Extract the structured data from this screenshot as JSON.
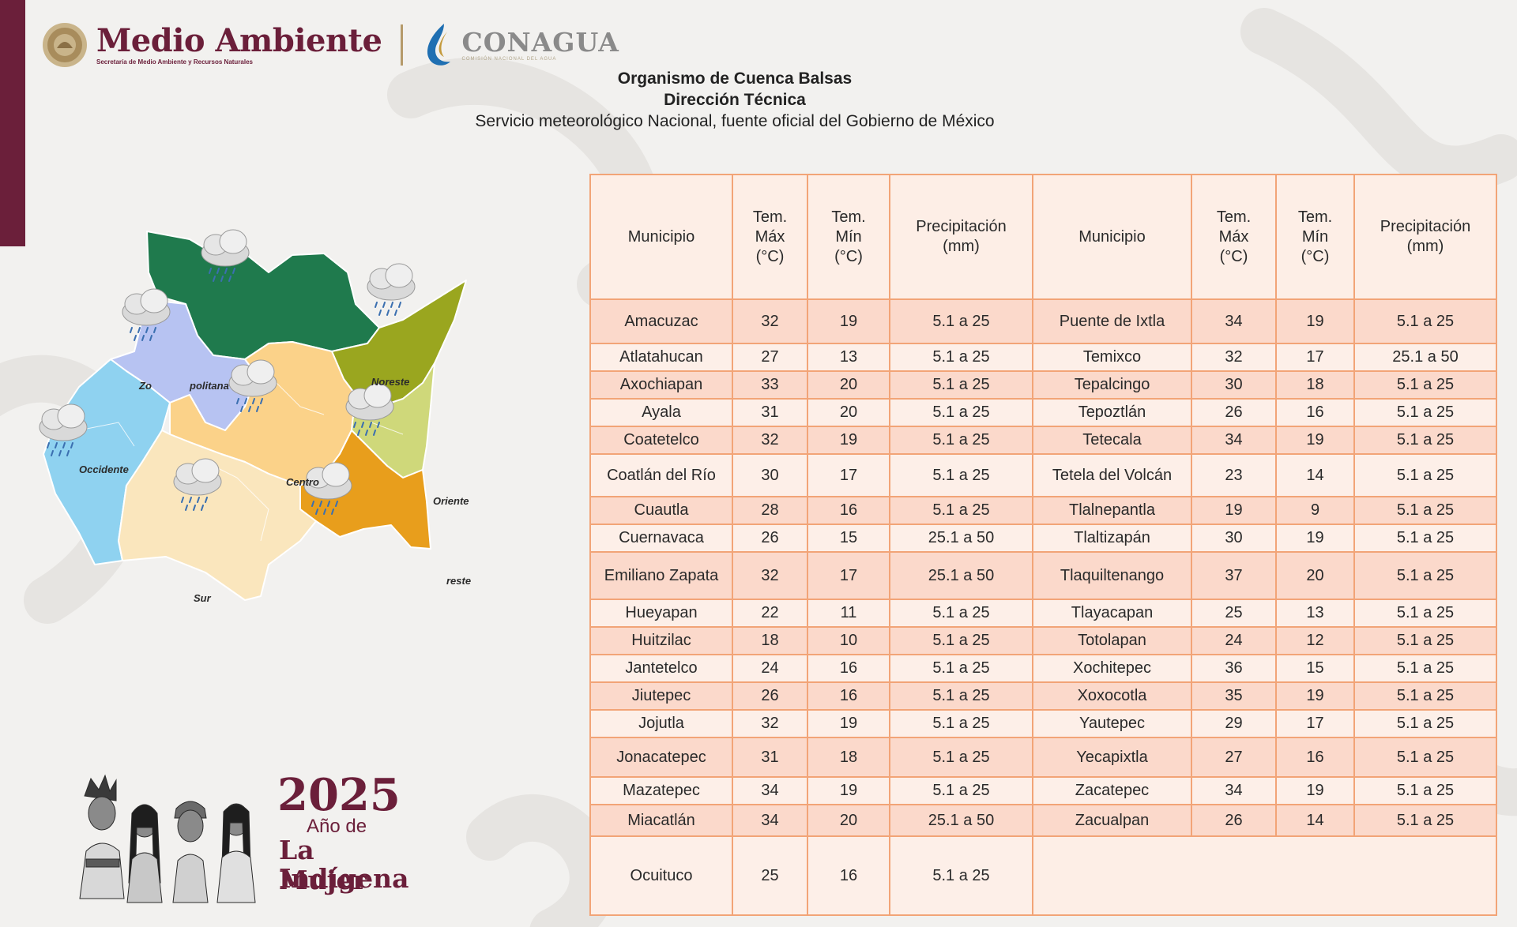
{
  "colors": {
    "brand": "#6b1f3a",
    "table_border": "#f2a477",
    "row_dark": "#fbd9cb",
    "row_light": "#fdefe8"
  },
  "logos": {
    "medio_ambiente": "Medio Ambiente",
    "medio_ambiente_sub": "Secretaría de Medio Ambiente y Recursos Naturales",
    "conagua": "CONAGUA",
    "conagua_sub": "COMISIÓN NACIONAL DEL AGUA"
  },
  "header": {
    "line1": "Organismo de Cuenca Balsas",
    "line2": "Dirección Técnica",
    "line3": "Servicio meteorológico Nacional, fuente oficial del Gobierno de México"
  },
  "map": {
    "region_labels": [
      "Zo",
      "politana",
      "Noreste",
      "Occidente",
      "Centro",
      "Oriente",
      "reste",
      "Sur"
    ],
    "icon": "rain-cloud-icon"
  },
  "badge": {
    "year": "2025",
    "line2": "Año de",
    "line3": "La Mujer",
    "line4": "Indígena"
  },
  "table": {
    "headers": [
      [
        "Municipio"
      ],
      [
        "Tem.",
        "Máx",
        "(°C)"
      ],
      [
        "Tem.",
        "Mín",
        "(°C)"
      ],
      [
        "Precipitación",
        "(mm)"
      ],
      [
        "Municipio"
      ],
      [
        "Tem.",
        "Máx",
        "(°C)"
      ],
      [
        "Tem.",
        "Mín",
        "(°C)"
      ],
      [
        "Precipitación",
        "(mm)"
      ]
    ],
    "rows": [
      [
        "Amacuzac",
        "32",
        "19",
        "5.1 a 25",
        "Puente de Ixtla",
        "34",
        "19",
        "5.1 a 25"
      ],
      [
        "Atlatahucan",
        "27",
        "13",
        "5.1 a 25",
        "Temixco",
        "32",
        "17",
        "25.1 a 50"
      ],
      [
        "Axochiapan",
        "33",
        "20",
        "5.1 a 25",
        "Tepalcingo",
        "30",
        "18",
        "5.1 a 25"
      ],
      [
        "Ayala",
        "31",
        "20",
        "5.1 a 25",
        "Tepoztlán",
        "26",
        "16",
        "5.1 a 25"
      ],
      [
        "Coatetelco",
        "32",
        "19",
        "5.1 a 25",
        "Tetecala",
        "34",
        "19",
        "5.1 a 25"
      ],
      [
        "Coatlán del Río",
        "30",
        "17",
        "5.1 a 25",
        "Tetela del Volcán",
        "23",
        "14",
        "5.1 a 25"
      ],
      [
        "Cuautla",
        "28",
        "16",
        "5.1 a 25",
        "Tlalnepantla",
        "19",
        "9",
        "5.1 a 25"
      ],
      [
        "Cuernavaca",
        "26",
        "15",
        "25.1 a 50",
        "Tlaltizapán",
        "30",
        "19",
        "5.1 a 25"
      ],
      [
        "Emiliano Zapata",
        "32",
        "17",
        "25.1 a 50",
        "Tlaquiltenango",
        "37",
        "20",
        "5.1 a 25"
      ],
      [
        "Hueyapan",
        "22",
        "11",
        "5.1 a 25",
        "Tlayacapan",
        "25",
        "13",
        "5.1 a 25"
      ],
      [
        "Huitzilac",
        "18",
        "10",
        "5.1 a 25",
        "Totolapan",
        "24",
        "12",
        "5.1 a 25"
      ],
      [
        "Jantetelco",
        "24",
        "16",
        "5.1 a 25",
        "Xochitepec",
        "36",
        "15",
        "5.1 a 25"
      ],
      [
        "Jiutepec",
        "26",
        "16",
        "5.1 a 25",
        "Xoxocotla",
        "35",
        "19",
        "5.1 a 25"
      ],
      [
        "Jojutla",
        "32",
        "19",
        "5.1 a 25",
        "Yautepec",
        "29",
        "17",
        "5.1 a 25"
      ],
      [
        "Jonacatepec",
        "31",
        "18",
        "5.1 a 25",
        "Yecapixtla",
        "27",
        "16",
        "5.1 a 25"
      ],
      [
        "Mazatepec",
        "34",
        "19",
        "5.1 a 25",
        "Zacatepec",
        "34",
        "19",
        "5.1 a 25"
      ],
      [
        "Miacatlán",
        "34",
        "20",
        "25.1 a 50",
        "Zacualpan",
        "26",
        "14",
        "5.1 a 25"
      ],
      [
        "Ocuituco",
        "25",
        "16",
        "5.1 a 25",
        "",
        "",
        "",
        ""
      ]
    ]
  }
}
